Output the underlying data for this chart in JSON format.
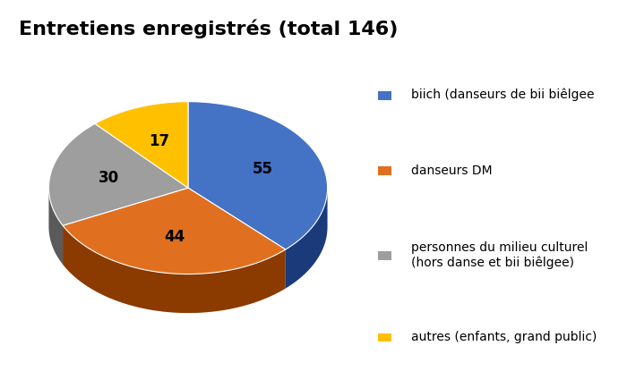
{
  "title": "Entretiens enregistrés (total 146)",
  "values": [
    55,
    44,
    30,
    17
  ],
  "labels": [
    "55",
    "44",
    "30",
    "17"
  ],
  "colors": [
    "#4472C4",
    "#E07020",
    "#9E9E9E",
    "#FFC000"
  ],
  "shadow_colors": [
    "#1A3A7A",
    "#8B3A00",
    "#5A5A5A",
    "#B08000"
  ],
  "legend_labels": [
    "biich (danseurs de bii biêlgee",
    "danseurs DM",
    "personnes du milieu culturel\n(hors danse et bii biêlgee)",
    "autres (enfants, grand public)"
  ],
  "startangle": 90,
  "title_fontsize": 16,
  "label_fontsize": 12,
  "legend_fontsize": 10,
  "background_color": "#ffffff"
}
